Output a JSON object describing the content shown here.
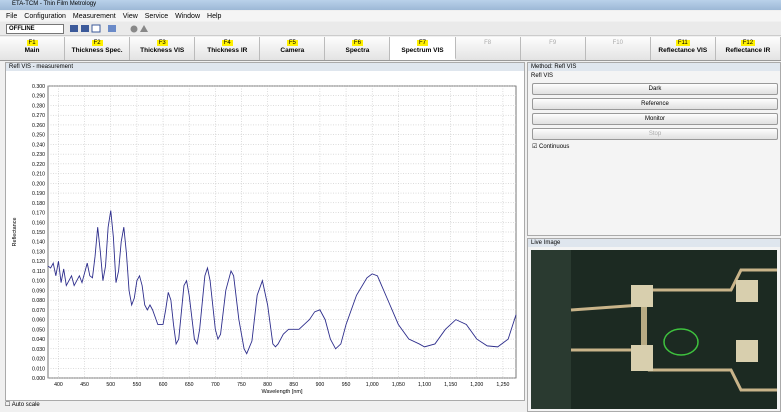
{
  "window": {
    "title": "ETA-TCM - Thin Film Metrology"
  },
  "menu": [
    "File",
    "Configuration",
    "Measurement",
    "View",
    "Service",
    "Window",
    "Help"
  ],
  "toolbar": {
    "status": "OFFLINE"
  },
  "tabs": [
    {
      "key": "F1",
      "label": "Main"
    },
    {
      "key": "F2",
      "label": "Thickness Spec."
    },
    {
      "key": "F3",
      "label": "Thickness VIS"
    },
    {
      "key": "F4",
      "label": "Thickness IR"
    },
    {
      "key": "F5",
      "label": "Camera"
    },
    {
      "key": "F6",
      "label": "Spectra"
    },
    {
      "key": "F7",
      "label": "Spectrum VIS"
    },
    {
      "key": "F8"
    },
    {
      "key": "F9"
    },
    {
      "key": "F10"
    },
    {
      "key": "F11",
      "label": "Reflectance VIS"
    },
    {
      "key": "F12",
      "label": "Reflectance IR"
    }
  ],
  "chart_panel": {
    "title": "Refl VIS - measurement",
    "auto_scale": "Auto scale"
  },
  "chart_data": {
    "type": "line",
    "x_label": "Wavelength [nm]",
    "y_label": "Reflectance",
    "grid": true,
    "x": [
      380,
      385,
      390,
      395,
      400,
      405,
      410,
      415,
      420,
      425,
      430,
      435,
      440,
      445,
      450,
      455,
      460,
      465,
      470,
      475,
      480,
      485,
      490,
      495,
      500,
      505,
      510,
      515,
      520,
      525,
      530,
      535,
      540,
      545,
      550,
      555,
      560,
      565,
      570,
      575,
      580,
      590,
      600,
      605,
      610,
      615,
      620,
      625,
      630,
      640,
      645,
      650,
      660,
      665,
      670,
      680,
      685,
      690,
      700,
      705,
      710,
      720,
      730,
      735,
      745,
      755,
      760,
      770,
      780,
      790,
      800,
      810,
      815,
      820,
      830,
      840,
      850,
      860,
      870,
      880,
      890,
      900,
      910,
      920,
      930,
      940,
      950,
      970,
      990,
      1000,
      1010,
      1030,
      1050,
      1070,
      1090,
      1100,
      1120,
      1140,
      1160,
      1180,
      1200,
      1220,
      1240,
      1260,
      1275
    ],
    "series": [
      {
        "name": "Refl VIS",
        "color": "#2e2e8c",
        "values": [
          0.115,
          0.113,
          0.118,
          0.105,
          0.12,
          0.098,
          0.112,
          0.095,
          0.1,
          0.105,
          0.095,
          0.1,
          0.105,
          0.098,
          0.108,
          0.118,
          0.105,
          0.103,
          0.125,
          0.155,
          0.13,
          0.1,
          0.115,
          0.155,
          0.172,
          0.145,
          0.098,
          0.11,
          0.14,
          0.155,
          0.128,
          0.09,
          0.075,
          0.082,
          0.1,
          0.105,
          0.095,
          0.075,
          0.07,
          0.075,
          0.07,
          0.055,
          0.055,
          0.07,
          0.088,
          0.08,
          0.055,
          0.035,
          0.04,
          0.095,
          0.1,
          0.085,
          0.04,
          0.035,
          0.05,
          0.105,
          0.113,
          0.1,
          0.05,
          0.04,
          0.045,
          0.09,
          0.11,
          0.105,
          0.06,
          0.03,
          0.025,
          0.038,
          0.085,
          0.1,
          0.075,
          0.035,
          0.032,
          0.035,
          0.045,
          0.05,
          0.05,
          0.05,
          0.055,
          0.06,
          0.068,
          0.07,
          0.06,
          0.04,
          0.03,
          0.035,
          0.055,
          0.085,
          0.103,
          0.107,
          0.105,
          0.08,
          0.055,
          0.04,
          0.035,
          0.032,
          0.035,
          0.05,
          0.06,
          0.055,
          0.04,
          0.033,
          0.032,
          0.04,
          0.065
        ]
      }
    ],
    "xlim": [
      380,
      1275
    ],
    "xticks": [
      400,
      450,
      500,
      550,
      600,
      650,
      700,
      750,
      800,
      850,
      900,
      950,
      {
        "value": 1000,
        "label": "1,000"
      },
      {
        "value": 1050,
        "label": "1,050"
      },
      {
        "value": 1100,
        "label": "1,100"
      },
      {
        "value": 1150,
        "label": "1,150"
      },
      {
        "value": 1200,
        "label": "1,200"
      },
      {
        "value": 1250,
        "label": "1,250"
      }
    ],
    "ylim": [
      0,
      0.3
    ],
    "yticks": [
      {
        "value": 0,
        "label": "0.000"
      },
      {
        "value": 0.01,
        "label": "0.010"
      },
      {
        "value": 0.02,
        "label": "0.020"
      },
      {
        "value": 0.03,
        "label": "0.030"
      },
      {
        "value": 0.04,
        "label": "0.040"
      },
      {
        "value": 0.05,
        "label": "0.050"
      },
      {
        "value": 0.06,
        "label": "0.060"
      },
      {
        "value": 0.07,
        "label": "0.070"
      },
      {
        "value": 0.08,
        "label": "0.080"
      },
      {
        "value": 0.09,
        "label": "0.090"
      },
      {
        "value": 0.1,
        "label": "0.100"
      },
      {
        "value": 0.11,
        "label": "0.110"
      },
      {
        "value": 0.12,
        "label": "0.120"
      },
      {
        "value": 0.13,
        "label": "0.130"
      },
      {
        "value": 0.14,
        "label": "0.140"
      },
      {
        "value": 0.15,
        "label": "0.150"
      },
      {
        "value": 0.16,
        "label": "0.160"
      },
      {
        "value": 0.17,
        "label": "0.170"
      },
      {
        "value": 0.18,
        "label": "0.180"
      },
      {
        "value": 0.19,
        "label": "0.190"
      },
      {
        "value": 0.2,
        "label": "0.200"
      },
      {
        "value": 0.21,
        "label": "0.210"
      },
      {
        "value": 0.22,
        "label": "0.220"
      },
      {
        "value": 0.23,
        "label": "0.230"
      },
      {
        "value": 0.24,
        "label": "0.240"
      },
      {
        "value": 0.25,
        "label": "0.250"
      },
      {
        "value": 0.26,
        "label": "0.260"
      },
      {
        "value": 0.27,
        "label": "0.270"
      },
      {
        "value": 0.28,
        "label": "0.280"
      },
      {
        "value": 0.29,
        "label": "0.290"
      },
      {
        "value": 0.3,
        "label": "0.300"
      }
    ]
  },
  "method_panel": {
    "title": "Method: Refl VIS",
    "group": "Refl VIS",
    "buttons": [
      "Dark",
      "Reference",
      "Monitor",
      "Stop"
    ],
    "continuous": "Continuous"
  },
  "live_image": {
    "title": "Live Image"
  }
}
